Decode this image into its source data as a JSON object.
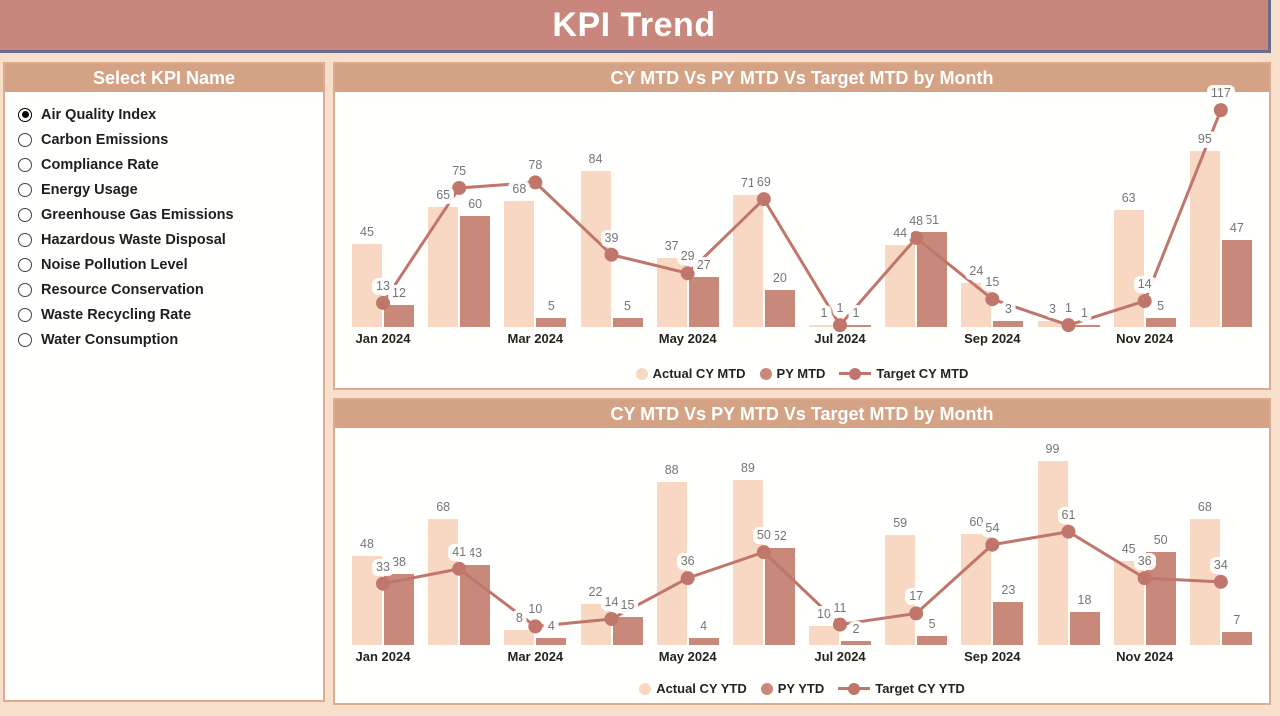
{
  "app": {
    "title": "KPI Trend"
  },
  "colors": {
    "header_bg": "#c9867c",
    "header_border": "#6b6b8d",
    "page_bg": "#f7dfcc",
    "panel_border": "#dcab90",
    "panel_title_bg": "#d4a284",
    "panel_title_text": "#ffffff",
    "actual_bar": "#f8d8c2",
    "py_bar": "#c8897a",
    "target_line": "#c0766b",
    "value_label_text": "#757575",
    "axis_text": "#252423"
  },
  "sidebar": {
    "title": "Select KPI Name",
    "items": [
      {
        "label": "Air Quality Index",
        "selected": true
      },
      {
        "label": "Carbon Emissions",
        "selected": false
      },
      {
        "label": "Compliance Rate",
        "selected": false
      },
      {
        "label": "Energy Usage",
        "selected": false
      },
      {
        "label": "Greenhouse Gas Emissions",
        "selected": false
      },
      {
        "label": "Hazardous Waste Disposal",
        "selected": false
      },
      {
        "label": "Noise Pollution Level",
        "selected": false
      },
      {
        "label": "Resource Conservation",
        "selected": false
      },
      {
        "label": "Waste Recycling Rate",
        "selected": false
      },
      {
        "label": "Water Consumption",
        "selected": false
      }
    ]
  },
  "chart_data": [
    {
      "type": "bar",
      "subtype": "combo-bar-line",
      "title": "CY MTD Vs PY MTD Vs Target MTD by Month",
      "categories": [
        "Jan 2024",
        "Feb 2024",
        "Mar 2024",
        "Apr 2024",
        "May 2024",
        "Jun 2024",
        "Jul 2024",
        "Aug 2024",
        "Sep 2024",
        "Oct 2024",
        "Nov 2024",
        "Dec 2024"
      ],
      "x_axis_labels_visible": [
        "Jan 2024",
        "Mar 2024",
        "May 2024",
        "Jul 2024",
        "Sep 2024",
        "Nov 2024"
      ],
      "series": [
        {
          "name": "Actual CY MTD",
          "render": "bar",
          "color": "#f8d8c2",
          "values": [
            45,
            65,
            68,
            84,
            37,
            71,
            1,
            44,
            24,
            3,
            63,
            95
          ]
        },
        {
          "name": "PY MTD",
          "render": "bar",
          "color": "#c8897a",
          "values": [
            12,
            60,
            5,
            5,
            27,
            20,
            1,
            51,
            3,
            1,
            5,
            47
          ]
        },
        {
          "name": "Target CY MTD",
          "render": "line",
          "color": "#c0766b",
          "values": [
            13,
            75,
            78,
            39,
            29,
            69,
            1,
            48,
            15,
            1,
            14,
            117
          ]
        }
      ],
      "ylim": [
        0,
        123
      ],
      "grid": false,
      "legend_position": "bottom",
      "data_labels": true
    },
    {
      "type": "bar",
      "subtype": "combo-bar-line",
      "title": "CY MTD Vs PY MTD Vs Target MTD by Month",
      "categories": [
        "Jan 2024",
        "Feb 2024",
        "Mar 2024",
        "Apr 2024",
        "May 2024",
        "Jun 2024",
        "Jul 2024",
        "Aug 2024",
        "Sep 2024",
        "Oct 2024",
        "Nov 2024",
        "Dec 2024"
      ],
      "x_axis_labels_visible": [
        "Jan 2024",
        "Mar 2024",
        "May 2024",
        "Jul 2024",
        "Sep 2024",
        "Nov 2024"
      ],
      "series": [
        {
          "name": "Actual CY YTD",
          "render": "bar",
          "color": "#f8d8c2",
          "values": [
            48,
            68,
            8,
            22,
            88,
            89,
            10,
            59,
            60,
            99,
            45,
            68
          ]
        },
        {
          "name": "PY YTD",
          "render": "bar",
          "color": "#c8897a",
          "values": [
            38,
            43,
            4,
            15,
            4,
            52,
            2,
            5,
            23,
            18,
            50,
            7
          ]
        },
        {
          "name": "Target CY YTD",
          "render": "line",
          "color": "#c0766b",
          "values": [
            33,
            41,
            10,
            14,
            36,
            50,
            11,
            17,
            54,
            61,
            36,
            34
          ]
        }
      ],
      "ylim": [
        0,
        105
      ],
      "grid": false,
      "legend_position": "bottom",
      "data_labels": true
    }
  ]
}
